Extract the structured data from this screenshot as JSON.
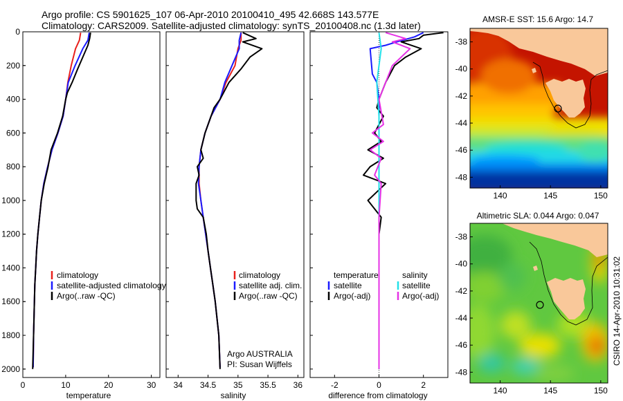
{
  "header": {
    "line1": "Argo profile: CS 5901625_107 06-Apr-2010 20100410_495 42.668S 143.577E",
    "line2": "Climatology: CARS2009. Satellite-adjusted climatology: synTS_20100408.nc (1.3d later)"
  },
  "side_label": "CSIRO 14-Apr-2010 10:31:02",
  "colors": {
    "climatology": "#e8201c",
    "satellite": "#1a1aff",
    "argo": "#000000",
    "sal_satellite": "#22e0e8",
    "sal_argo": "#e632e6",
    "land": "#f9c89a"
  },
  "chart_data": [
    {
      "type": "line",
      "xlabel": "temperature",
      "xlim": [
        0,
        32
      ],
      "xticks": [
        "0",
        "10",
        "20",
        "30"
      ],
      "ylim": [
        0,
        2050
      ],
      "yticks": [
        "0",
        "200",
        "400",
        "600",
        "800",
        "1000",
        "1200",
        "1400",
        "1600",
        "1800",
        "2000"
      ],
      "y_reversed": true,
      "legend": [
        "climatology",
        "satellite-adjusted climatology",
        "Argo(..raw -QC)"
      ],
      "series": [
        {
          "name": "climatology",
          "color": "climatology",
          "x": [
            13.5,
            13.2,
            12.3,
            11.3,
            10.5,
            10.0,
            9.4,
            8.2,
            6.8,
            5.8,
            4.9,
            4.3,
            3.9,
            3.5,
            3.2,
            3.0,
            2.8,
            2.7,
            2.6,
            2.5,
            2.4
          ],
          "y": [
            5,
            50,
            100,
            200,
            300,
            400,
            500,
            600,
            700,
            800,
            900,
            1000,
            1100,
            1200,
            1300,
            1400,
            1500,
            1600,
            1700,
            1800,
            1990
          ]
        },
        {
          "name": "satellite-adjusted climatology",
          "color": "satellite",
          "x": [
            15.5,
            15.2,
            14.0,
            12.2,
            10.6,
            10.0,
            9.4,
            8.2,
            6.8,
            5.8,
            4.9,
            4.3,
            3.9,
            3.5,
            3.2,
            3.0,
            2.8,
            2.7,
            2.6,
            2.5,
            2.4
          ],
          "y": [
            5,
            50,
            100,
            200,
            300,
            400,
            500,
            600,
            700,
            800,
            900,
            1000,
            1100,
            1200,
            1300,
            1400,
            1500,
            1600,
            1700,
            1800,
            1990
          ]
        },
        {
          "name": "Argo(..raw -QC)",
          "color": "argo",
          "x": [
            15.8,
            15.6,
            15.2,
            14.0,
            12.8,
            11.5,
            10.4,
            10.0,
            9.3,
            8.1,
            6.6,
            5.9,
            5.0,
            4.3,
            3.9,
            3.5,
            3.2,
            3.0,
            2.8,
            2.7,
            2.6,
            2.5,
            2.3
          ],
          "y": [
            5,
            40,
            80,
            150,
            220,
            300,
            360,
            400,
            500,
            600,
            700,
            800,
            900,
            1000,
            1100,
            1200,
            1300,
            1400,
            1500,
            1600,
            1700,
            1800,
            2000
          ]
        }
      ]
    },
    {
      "type": "line",
      "xlabel": "salinity",
      "xlim": [
        33.8,
        36.1
      ],
      "xticks": [
        "34",
        "34.5",
        "35",
        "35.5",
        "36"
      ],
      "ylim": [
        0,
        2050
      ],
      "y_reversed": true,
      "legend": [
        "climatology",
        "satellite adj. clim.",
        "Argo(..raw -QC)"
      ],
      "annotation": [
        "Argo AUSTRALIA",
        "PI: Susan Wijffels"
      ],
      "series": [
        {
          "name": "climatology",
          "color": "climatology",
          "x": [
            35.05,
            35.05,
            35.0,
            34.95,
            34.8,
            34.7,
            34.55,
            34.45,
            34.38,
            34.35,
            34.35,
            34.38,
            34.42,
            34.46,
            34.5,
            34.54,
            34.58,
            34.62,
            34.65,
            34.68,
            34.7
          ],
          "y": [
            5,
            50,
            100,
            200,
            300,
            400,
            500,
            600,
            700,
            800,
            900,
            1000,
            1100,
            1200,
            1300,
            1400,
            1500,
            1600,
            1700,
            1800,
            1990
          ]
        },
        {
          "name": "satellite adj. clim.",
          "color": "satellite",
          "x": [
            35.05,
            35.02,
            35.02,
            34.9,
            34.78,
            34.7,
            34.55,
            34.45,
            34.38,
            34.35,
            34.34,
            34.38,
            34.42,
            34.46,
            34.5,
            34.54,
            34.58,
            34.62,
            34.65,
            34.68,
            34.7
          ],
          "y": [
            5,
            50,
            100,
            200,
            300,
            400,
            500,
            600,
            700,
            800,
            900,
            1000,
            1100,
            1200,
            1300,
            1400,
            1500,
            1600,
            1700,
            1800,
            1990
          ]
        },
        {
          "name": "Argo(..raw -QC)",
          "color": "argo",
          "x": [
            35.08,
            35.3,
            35.08,
            35.4,
            35.2,
            35.05,
            34.85,
            34.7,
            34.6,
            34.55,
            34.45,
            34.38,
            34.42,
            34.32,
            34.35,
            34.3,
            34.3,
            34.32,
            34.42,
            34.47,
            34.5,
            34.54,
            34.58,
            34.62,
            34.65,
            34.68,
            34.7
          ],
          "y": [
            5,
            40,
            60,
            100,
            150,
            220,
            300,
            400,
            450,
            500,
            600,
            700,
            750,
            800,
            850,
            900,
            1000,
            1050,
            1100,
            1200,
            1300,
            1400,
            1500,
            1600,
            1700,
            1800,
            2000
          ]
        }
      ]
    },
    {
      "type": "line",
      "xlabel": "difference from climatology",
      "xlim": [
        -3.1,
        3.1
      ],
      "xticks": [
        "-2",
        "0",
        "2"
      ],
      "ylim": [
        0,
        2050
      ],
      "y_reversed": true,
      "legend": [
        "temperature",
        "satellite",
        "Argo(-adj)",
        "salinity",
        "satellite",
        "Argo(-adj)"
      ],
      "series": [
        {
          "name": "temperature satellite",
          "color": "satellite",
          "x": [
            2.0,
            1.6,
            0.8,
            0.3,
            -0.4,
            -0.3,
            -0.1,
            0.0,
            0.0,
            0.0,
            0.0,
            0.0,
            0.0,
            0.0,
            0.0,
            0.0
          ],
          "y": [
            5,
            30,
            60,
            80,
            100,
            250,
            300,
            400,
            600,
            800,
            1000,
            1200,
            1400,
            1600,
            1800,
            2000
          ]
        },
        {
          "name": "temperature Argo(-adj)",
          "color": "argo",
          "x": [
            2.9,
            2.0,
            1.8,
            1.0,
            1.9,
            1.2,
            0.7,
            0.3,
            0.0,
            -0.1,
            0.2,
            0.0,
            -0.2,
            0.1,
            -0.5,
            0.2,
            -0.4,
            -0.7,
            0.3,
            -0.1,
            -0.5,
            0.1,
            0.0,
            0.0
          ],
          "y": [
            5,
            20,
            40,
            60,
            100,
            150,
            200,
            300,
            400,
            450,
            500,
            550,
            600,
            650,
            700,
            750,
            800,
            850,
            900,
            950,
            1000,
            1100,
            1200,
            2000
          ]
        },
        {
          "name": "salinity satellite",
          "color": "sal_satellite",
          "x": [
            0.0,
            0.1,
            -0.1,
            0.0,
            0.0,
            0.0,
            0.0,
            0.0,
            0.0,
            0.0
          ],
          "y": [
            5,
            100,
            300,
            500,
            800,
            1100,
            1400,
            1700,
            1850,
            2000
          ]
        },
        {
          "name": "salinity Argo(-adj)",
          "color": "sal_argo",
          "x": [
            0.3,
            1.2,
            0.6,
            1.4,
            1.0,
            0.6,
            0.3,
            0.0,
            0.2,
            -0.3,
            0.2,
            -0.4,
            0.1,
            -0.2,
            0.1,
            0.0,
            0.0
          ],
          "y": [
            5,
            40,
            60,
            100,
            150,
            200,
            300,
            400,
            550,
            600,
            650,
            700,
            750,
            850,
            900,
            1100,
            2000
          ]
        }
      ]
    },
    {
      "type": "heatmap",
      "title": "AMSR-E SST: 15.6 Argo: 14.7",
      "xticks": [
        "140",
        "145",
        "150"
      ],
      "yticks": [
        "-38",
        "-40",
        "-42",
        "-44",
        "-46",
        "-48"
      ],
      "xlim": [
        137,
        150.7
      ],
      "ylim": [
        -48.8,
        -37
      ]
    },
    {
      "type": "heatmap",
      "title": "Altimetric SLA: 0.044 Argo: 0.047",
      "xticks": [
        "140",
        "145",
        "150"
      ],
      "yticks": [
        "-38",
        "-40",
        "-42",
        "-44",
        "-46",
        "-48"
      ],
      "xlim": [
        137,
        150.7
      ],
      "ylim": [
        -48.8,
        -37
      ]
    }
  ]
}
